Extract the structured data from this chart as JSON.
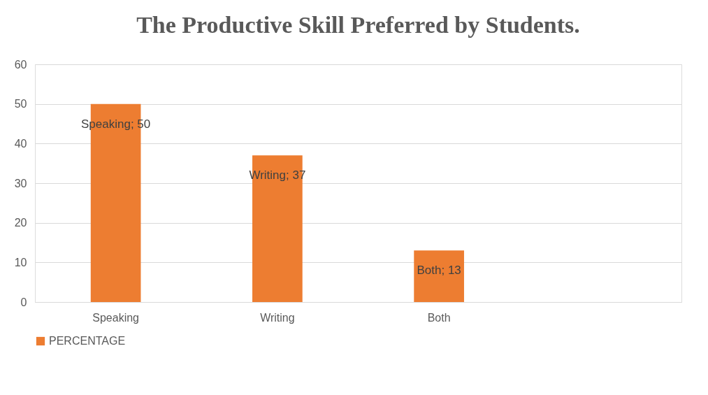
{
  "chart_data": {
    "type": "bar",
    "title": "The Productive Skill Preferred by Students.",
    "categories": [
      "Speaking",
      "Writing",
      "Both",
      null
    ],
    "series": [
      {
        "name": "PERCENTAGE",
        "color": "#ed7d31",
        "values": [
          50,
          37,
          13,
          null
        ],
        "value_labels": [
          "Speaking; 50",
          "Writing; 37",
          "Both; 13",
          null
        ]
      }
    ],
    "ylim": [
      0,
      60
    ],
    "yticks": [
      0,
      10,
      20,
      30,
      40,
      50,
      60
    ],
    "grid": "y",
    "legend": "bottom"
  }
}
